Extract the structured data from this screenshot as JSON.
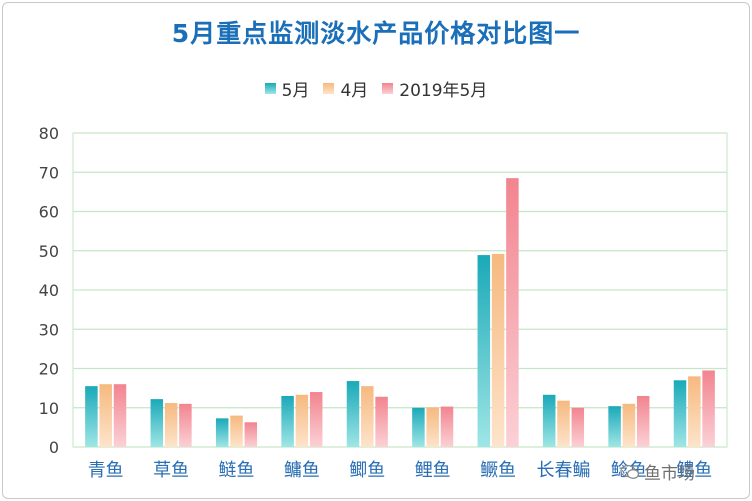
{
  "chart_data": {
    "type": "bar",
    "title": "5月重点监测淡水产品价格对比图一",
    "categories": [
      "青鱼",
      "草鱼",
      "鲢鱼",
      "鳙鱼",
      "鲫鱼",
      "鲤鱼",
      "鳜鱼",
      "长春鳊",
      "鲶鱼",
      "鳢鱼"
    ],
    "series": [
      {
        "name": "5月",
        "values": [
          15.5,
          12.2,
          7.3,
          13.0,
          16.8,
          10.0,
          48.9,
          13.3,
          10.4,
          17.0
        ]
      },
      {
        "name": "4月",
        "values": [
          16.0,
          11.2,
          8.0,
          13.3,
          15.5,
          10.1,
          49.2,
          11.8,
          11.0,
          18.0
        ]
      },
      {
        "name": "2019年5月",
        "values": [
          16.0,
          11.0,
          6.3,
          14.0,
          12.8,
          10.3,
          68.5,
          10.0,
          13.0,
          19.5
        ]
      }
    ],
    "ylim": [
      0,
      80
    ],
    "yticks": [
      0,
      10,
      20,
      30,
      40,
      50,
      60,
      70,
      80
    ],
    "grid": true,
    "legend_position": "top-center",
    "colors": {
      "5月": [
        "#1aa9b8",
        "#9fe6e6"
      ],
      "4月": [
        "#f6b97f",
        "#fde4cb"
      ],
      "2019年5月": [
        "#f2848f",
        "#fbd1d6"
      ],
      "grid": "#c6e6c6",
      "category_label": "#2a6fb5"
    }
  },
  "watermark": {
    "text": "鱼市场",
    "icon": "wechat-icon"
  }
}
